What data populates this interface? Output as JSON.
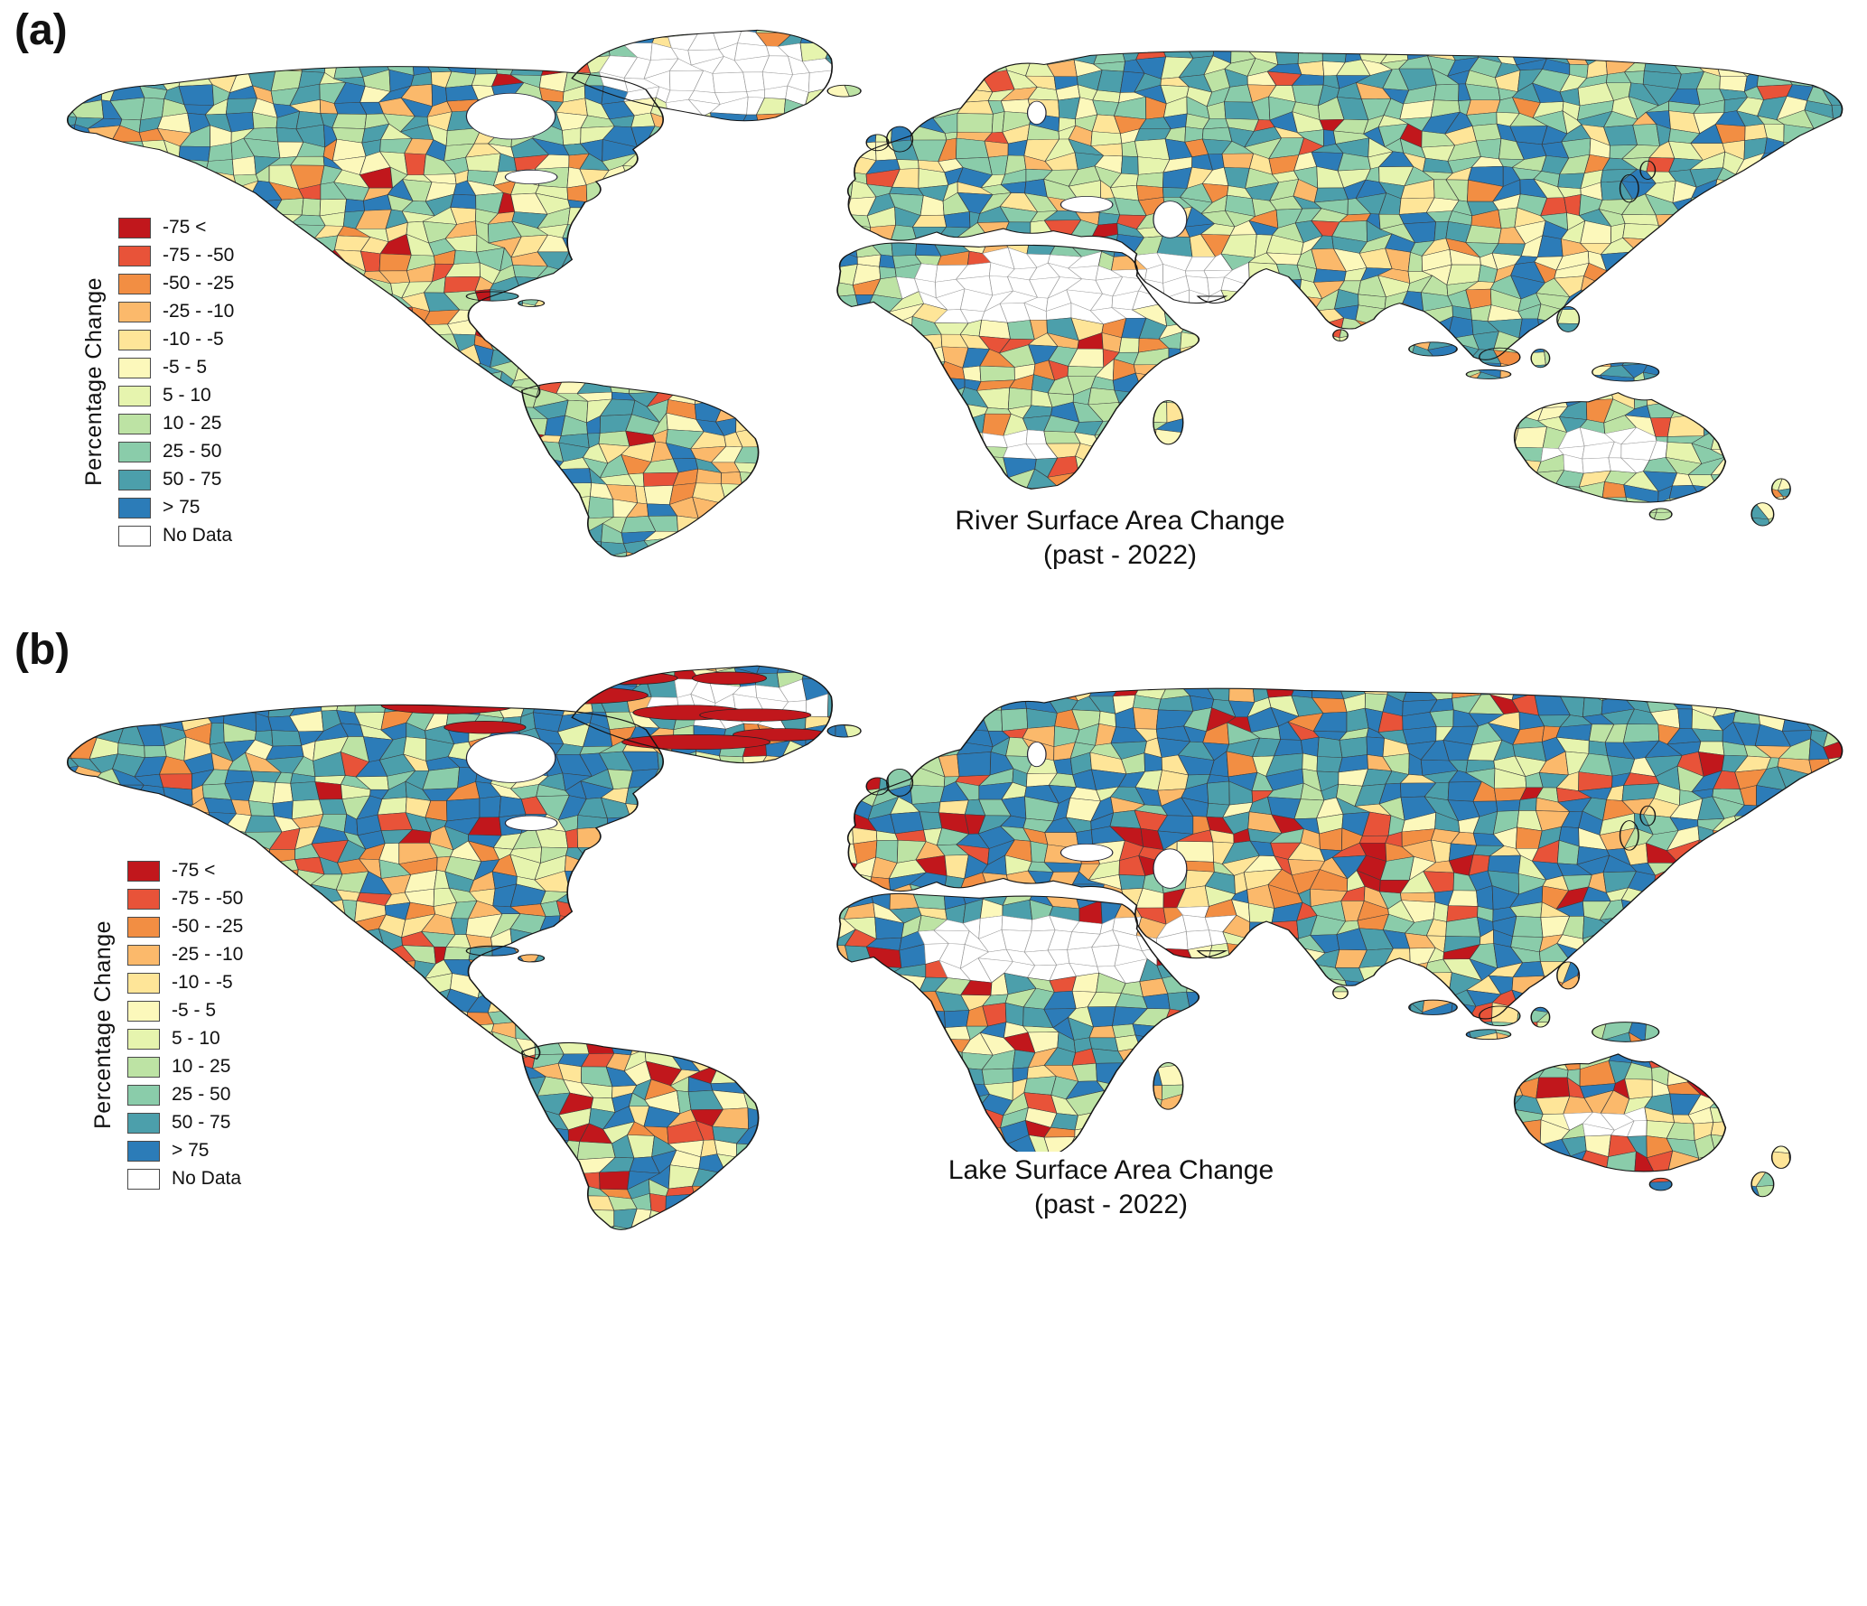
{
  "panels": [
    {
      "id": "a",
      "label": "(a)",
      "caption_line1": "River Surface Area Change",
      "caption_line2": "(past - 2022)"
    },
    {
      "id": "b",
      "label": "(b)",
      "caption_line1": "Lake Surface Area Change",
      "caption_line2": "(past - 2022)"
    }
  ],
  "legend": {
    "title": "Percentage Change",
    "classes": [
      {
        "label": "-75 <",
        "color": "#c1171c"
      },
      {
        "label": "-75 - -50",
        "color": "#e85339"
      },
      {
        "label": "-50 - -25",
        "color": "#f28e43"
      },
      {
        "label": "-25 - -10",
        "color": "#fbb96b"
      },
      {
        "label": "-10 - -5",
        "color": "#fee598"
      },
      {
        "label": "-5 - 5",
        "color": "#fcf8bb"
      },
      {
        "label": "5 - 10",
        "color": "#e6f4ae"
      },
      {
        "label": "10 - 25",
        "color": "#bde3a4"
      },
      {
        "label": "25 - 50",
        "color": "#8accaa"
      },
      {
        "label": "50 - 75",
        "color": "#4c9fab"
      },
      {
        "label": "> 75",
        "color": "#2c7cb8"
      },
      {
        "label": "No Data",
        "color": "#ffffff"
      }
    ]
  }
}
